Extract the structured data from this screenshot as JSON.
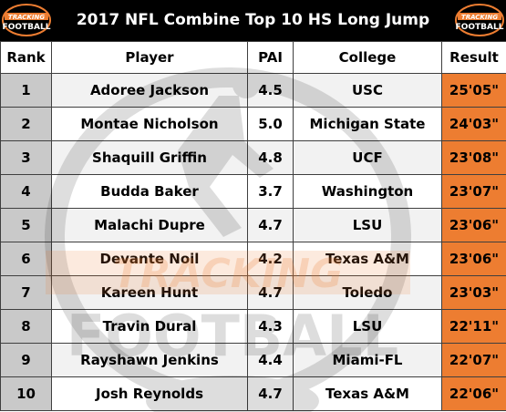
{
  "header": {
    "title": "2017 NFL Combine Top 10 HS Long Jump",
    "logo_text_top": "TRACKING",
    "logo_text_bottom": "FOOTBALL"
  },
  "table": {
    "columns": [
      "Rank",
      "Player",
      "PAI",
      "College",
      "Result"
    ],
    "rows": [
      {
        "rank": "1",
        "player": "Adoree Jackson",
        "pai": "4.5",
        "college": "USC",
        "result": "25'05\""
      },
      {
        "rank": "2",
        "player": "Montae Nicholson",
        "pai": "5.0",
        "college": "Michigan State",
        "result": "24'03\""
      },
      {
        "rank": "3",
        "player": "Shaquill Griffin",
        "pai": "4.8",
        "college": "UCF",
        "result": "23'08\""
      },
      {
        "rank": "4",
        "player": "Budda Baker",
        "pai": "3.7",
        "college": "Washington",
        "result": "23'07\""
      },
      {
        "rank": "5",
        "player": "Malachi Dupre",
        "pai": "4.7",
        "college": "LSU",
        "result": "23'06\""
      },
      {
        "rank": "6",
        "player": "Devante Noil",
        "pai": "4.2",
        "college": "Texas A&M",
        "result": "23'06\""
      },
      {
        "rank": "7",
        "player": "Kareen Hunt",
        "pai": "4.7",
        "college": "Toledo",
        "result": "23'03\""
      },
      {
        "rank": "8",
        "player": "Travin Dural",
        "pai": "4.3",
        "college": "LSU",
        "result": "22'11\""
      },
      {
        "rank": "9",
        "player": "Rayshawn Jenkins",
        "pai": "4.4",
        "college": "Miami-FL",
        "result": "22'07\""
      },
      {
        "rank": "10",
        "player": "Josh Reynolds",
        "pai": "4.7",
        "college": "Texas A&M",
        "result": "22'06\""
      }
    ]
  },
  "watermark": {
    "word_top": "TRACKING",
    "word_bottom": "FOOTBALL"
  },
  "colors": {
    "result_fill": "#ed7d31",
    "rank_fill": "#c9c9c9",
    "band_fill": "#f2f2f2",
    "header_bar": "#000000"
  }
}
